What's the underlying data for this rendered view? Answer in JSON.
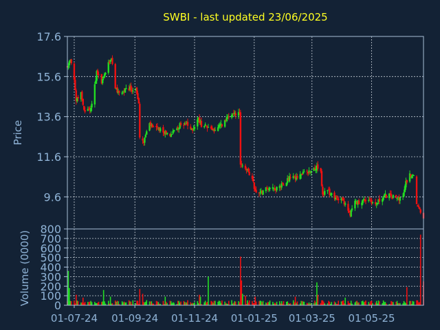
{
  "chart_data": [
    {
      "type": "candlestick",
      "title": "SWBI - last updated 23/06/2025",
      "xlabel": "",
      "ylabel": "Price",
      "ylim": [
        8.0,
        17.6
      ],
      "y_ticks": [
        "17.6",
        "15.6",
        "13.6",
        "11.6",
        "9.6"
      ],
      "grid": true,
      "colors": {
        "up": "#22dd22",
        "down": "#ee1111",
        "title": "#ffff22",
        "axis_text": "#8fb3d6",
        "grid": "#c8d0d8",
        "axis": "#a9c0d8",
        "background": "#132235"
      },
      "x_range": [
        "2024-06-24",
        "2025-06-23"
      ],
      "x_ticks": [
        {
          "label": "01-07-24",
          "date": "2024-07-01"
        },
        {
          "label": "01-09-24",
          "date": "2024-09-01"
        },
        {
          "label": "01-11-24",
          "date": "2024-11-01"
        },
        {
          "label": "01-01-25",
          "date": "2025-01-01"
        },
        {
          "label": "01-03-25",
          "date": "2025-03-01"
        },
        {
          "label": "01-05-25",
          "date": "2025-05-01"
        }
      ],
      "series_anchors": [
        [
          "2024-06-24",
          16.1
        ],
        [
          "2024-06-27",
          16.4
        ],
        [
          "2024-07-01",
          15.5
        ],
        [
          "2024-07-03",
          14.4
        ],
        [
          "2024-07-08",
          14.8
        ],
        [
          "2024-07-11",
          13.9
        ],
        [
          "2024-07-18",
          14.0
        ],
        [
          "2024-07-24",
          15.8
        ],
        [
          "2024-07-29",
          15.3
        ],
        [
          "2024-08-05",
          16.2
        ],
        [
          "2024-08-08",
          16.6
        ],
        [
          "2024-08-12",
          14.9
        ],
        [
          "2024-08-19",
          14.8
        ],
        [
          "2024-08-26",
          15.0
        ],
        [
          "2024-09-02",
          14.9
        ],
        [
          "2024-09-05",
          14.2
        ],
        [
          "2024-09-06",
          12.6
        ],
        [
          "2024-09-10",
          12.4
        ],
        [
          "2024-09-16",
          13.2
        ],
        [
          "2024-09-23",
          13.0
        ],
        [
          "2024-10-01",
          12.8
        ],
        [
          "2024-10-08",
          12.7
        ],
        [
          "2024-10-15",
          13.1
        ],
        [
          "2024-10-22",
          13.3
        ],
        [
          "2024-10-29",
          12.9
        ],
        [
          "2024-11-05",
          13.5
        ],
        [
          "2024-11-08",
          13.2
        ],
        [
          "2024-11-15",
          13.1
        ],
        [
          "2024-11-22",
          12.9
        ],
        [
          "2024-11-29",
          13.2
        ],
        [
          "2024-12-06",
          13.6
        ],
        [
          "2024-12-13",
          13.7
        ],
        [
          "2024-12-17",
          13.9
        ],
        [
          "2024-12-18",
          11.3
        ],
        [
          "2024-12-23",
          11.1
        ],
        [
          "2024-12-30",
          10.4
        ],
        [
          "2025-01-03",
          9.8
        ],
        [
          "2025-01-10",
          9.9
        ],
        [
          "2025-01-17",
          10.1
        ],
        [
          "2025-01-24",
          10.0
        ],
        [
          "2025-01-31",
          10.3
        ],
        [
          "2025-02-07",
          10.6
        ],
        [
          "2025-02-14",
          10.6
        ],
        [
          "2025-02-21",
          10.8
        ],
        [
          "2025-02-28",
          10.9
        ],
        [
          "2025-03-05",
          11.1
        ],
        [
          "2025-03-10",
          10.8
        ],
        [
          "2025-03-12",
          9.7
        ],
        [
          "2025-03-17",
          9.9
        ],
        [
          "2025-03-24",
          9.5
        ],
        [
          "2025-03-31",
          9.6
        ],
        [
          "2025-04-04",
          9.2
        ],
        [
          "2025-04-09",
          8.7
        ],
        [
          "2025-04-14",
          9.3
        ],
        [
          "2025-04-21",
          9.4
        ],
        [
          "2025-04-28",
          9.5
        ],
        [
          "2025-05-05",
          9.2
        ],
        [
          "2025-05-12",
          9.6
        ],
        [
          "2025-05-19",
          9.7
        ],
        [
          "2025-05-26",
          9.5
        ],
        [
          "2025-06-02",
          9.6
        ],
        [
          "2025-06-05",
          10.3
        ],
        [
          "2025-06-09",
          10.7
        ],
        [
          "2025-06-13",
          10.6
        ],
        [
          "2025-06-16",
          9.2
        ],
        [
          "2025-06-20",
          8.9
        ],
        [
          "2025-06-23",
          8.6
        ]
      ]
    },
    {
      "type": "bar",
      "title": "",
      "xlabel": "",
      "ylabel": "Volume (0000)",
      "ylim": [
        0,
        800
      ],
      "y_ticks": [
        "800",
        "700",
        "600",
        "500",
        "400",
        "300",
        "200",
        "100",
        "0"
      ],
      "grid": true,
      "base_volume": 30,
      "volume_spikes": [
        [
          "2024-06-25",
          360
        ],
        [
          "2024-06-26",
          180
        ],
        [
          "2024-07-03",
          110
        ],
        [
          "2024-07-10",
          80
        ],
        [
          "2024-07-31",
          160
        ],
        [
          "2024-08-07",
          90
        ],
        [
          "2024-09-06",
          170
        ],
        [
          "2024-09-09",
          120
        ],
        [
          "2024-10-02",
          90
        ],
        [
          "2024-11-06",
          110
        ],
        [
          "2024-11-07",
          90
        ],
        [
          "2024-11-15",
          300
        ],
        [
          "2024-12-18",
          510
        ],
        [
          "2024-12-19",
          260
        ],
        [
          "2024-12-20",
          120
        ],
        [
          "2024-12-23",
          100
        ],
        [
          "2025-01-02",
          90
        ],
        [
          "2025-02-12",
          90
        ],
        [
          "2025-03-06",
          240
        ],
        [
          "2025-03-07",
          110
        ],
        [
          "2025-04-04",
          80
        ],
        [
          "2025-06-06",
          190
        ],
        [
          "2025-06-20",
          740
        ],
        [
          "2025-06-23",
          250
        ]
      ]
    }
  ]
}
